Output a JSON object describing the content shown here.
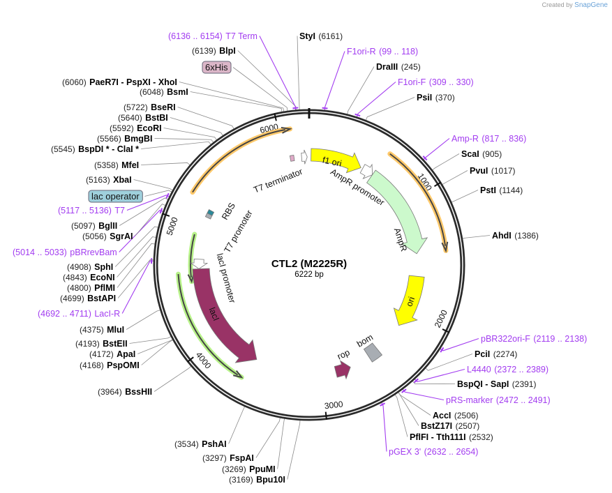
{
  "brand": {
    "created_by": "Created by",
    "app": "SnapGene"
  },
  "plasmid": {
    "name": "CTL2 (M2225R)",
    "length": "6222 bp",
    "total_bp": 6222
  },
  "scale_ticks": [
    "1000",
    "2000",
    "3000",
    "4000",
    "5000",
    "6000"
  ],
  "features": {
    "f1_ori": "f1 ori",
    "ampr_promoter": "AmpR promoter",
    "ampr": "AmpR",
    "ori": "ori",
    "bom": "bom",
    "rop": "rop",
    "laci": "lacI",
    "laci_promoter": "lacI promoter",
    "t7_promoter": "T7 promoter",
    "rbs": "RBS",
    "t7_terminator": "T7 terminator"
  },
  "colors": {
    "primer": "#a23cf0",
    "yellow": "#ffff00",
    "ampr": "#ccf9cc",
    "maroon": "#993366",
    "orf_orange": "#ffc96b",
    "orf_green": "#b8f28a"
  },
  "sites": [
    {
      "type": "enzyme",
      "names": [
        "StyI"
      ],
      "pos": "(6161)"
    },
    {
      "type": "primer",
      "names": [
        "F1ori-R"
      ],
      "pos": "(99 .. 118)"
    },
    {
      "type": "enzyme",
      "names": [
        "DraIII"
      ],
      "pos": "(245)"
    },
    {
      "type": "primer",
      "names": [
        "F1ori-F"
      ],
      "pos": "(309 .. 330)"
    },
    {
      "type": "enzyme",
      "names": [
        "PsiI"
      ],
      "pos": "(370)"
    },
    {
      "type": "primer",
      "names": [
        "Amp-R"
      ],
      "pos": "(817 .. 836)"
    },
    {
      "type": "enzyme",
      "names": [
        "ScaI"
      ],
      "pos": "(905)"
    },
    {
      "type": "enzyme",
      "names": [
        "PvuI"
      ],
      "pos": "(1017)"
    },
    {
      "type": "enzyme",
      "names": [
        "PstI"
      ],
      "pos": "(1144)"
    },
    {
      "type": "enzyme",
      "names": [
        "AhdI"
      ],
      "pos": "(1386)"
    },
    {
      "type": "primer",
      "names": [
        "pBR322ori-F"
      ],
      "pos": "(2119 .. 2138)"
    },
    {
      "type": "enzyme",
      "names": [
        "PciI"
      ],
      "pos": "(2274)"
    },
    {
      "type": "primer",
      "names": [
        "L4440"
      ],
      "pos": "(2372 .. 2389)"
    },
    {
      "type": "enzyme",
      "names": [
        "BspQI",
        "SapI"
      ],
      "pos": "(2391)"
    },
    {
      "type": "primer",
      "names": [
        "pRS-marker"
      ],
      "pos": "(2472 .. 2491)"
    },
    {
      "type": "enzyme",
      "names": [
        "AccI"
      ],
      "pos": "(2506)"
    },
    {
      "type": "enzyme",
      "names": [
        "BstZ17I"
      ],
      "pos": "(2507)"
    },
    {
      "type": "enzyme",
      "names": [
        "PflFI",
        "Tth111I"
      ],
      "pos": "(2532)"
    },
    {
      "type": "primer",
      "names": [
        "pGEX 3'"
      ],
      "pos": "(2632 .. 2654)"
    },
    {
      "type": "enzyme",
      "names": [
        "Bpu10I"
      ],
      "pos": "(3169)"
    },
    {
      "type": "enzyme",
      "names": [
        "PpuMI"
      ],
      "pos": "(3269)"
    },
    {
      "type": "enzyme",
      "names": [
        "FspAI"
      ],
      "pos": "(3297)"
    },
    {
      "type": "enzyme",
      "names": [
        "PshAI"
      ],
      "pos": "(3534)"
    },
    {
      "type": "enzyme",
      "names": [
        "BssHII"
      ],
      "pos": "(3964)"
    },
    {
      "type": "enzyme",
      "names": [
        "PspOMI"
      ],
      "pos": "(4168)"
    },
    {
      "type": "enzyme",
      "names": [
        "ApaI"
      ],
      "pos": "(4172)"
    },
    {
      "type": "enzyme",
      "names": [
        "BstEII"
      ],
      "pos": "(4193)"
    },
    {
      "type": "enzyme",
      "names": [
        "MluI"
      ],
      "pos": "(4375)"
    },
    {
      "type": "primer",
      "names": [
        "LacI-R"
      ],
      "pos": "(4692 .. 4711)"
    },
    {
      "type": "enzyme",
      "names": [
        "BstAPI"
      ],
      "pos": "(4699)"
    },
    {
      "type": "enzyme",
      "names": [
        "PflMI"
      ],
      "pos": "(4800)"
    },
    {
      "type": "enzyme",
      "names": [
        "EcoNI"
      ],
      "pos": "(4843)"
    },
    {
      "type": "enzyme",
      "names": [
        "SphI"
      ],
      "pos": "(4908)"
    },
    {
      "type": "primer",
      "names": [
        "pBRrevBam"
      ],
      "pos": "(5014 .. 5033)"
    },
    {
      "type": "enzyme",
      "names": [
        "SgrAI"
      ],
      "pos": "(5056)"
    },
    {
      "type": "enzyme",
      "names": [
        "BglII"
      ],
      "pos": "(5097)"
    },
    {
      "type": "primer",
      "names": [
        "T7"
      ],
      "pos": "(5117 .. 5136)"
    },
    {
      "type": "box",
      "names": [
        "lac operator"
      ],
      "pos": "",
      "fill": "#9fd0dc"
    },
    {
      "type": "enzyme",
      "names": [
        "XbaI"
      ],
      "pos": "(5163)"
    },
    {
      "type": "enzyme",
      "names": [
        "MfeI"
      ],
      "pos": "(5358)"
    },
    {
      "type": "enzyme",
      "names": [
        "BspDI *",
        "ClaI *"
      ],
      "pos": "(5545)"
    },
    {
      "type": "enzyme",
      "names": [
        "BmgBI"
      ],
      "pos": "(5566)"
    },
    {
      "type": "enzyme",
      "names": [
        "EcoRI"
      ],
      "pos": "(5592)"
    },
    {
      "type": "enzyme",
      "names": [
        "BstBI"
      ],
      "pos": "(5640)"
    },
    {
      "type": "enzyme",
      "names": [
        "BseRI"
      ],
      "pos": "(5722)"
    },
    {
      "type": "enzyme",
      "names": [
        "BsmI"
      ],
      "pos": "(6048)"
    },
    {
      "type": "enzyme",
      "names": [
        "PaeR7I",
        "PspXI",
        "XhoI"
      ],
      "pos": "(6060)"
    },
    {
      "type": "box",
      "names": [
        "6xHis"
      ],
      "pos": "",
      "fill": "#dbb6c8"
    },
    {
      "type": "enzyme",
      "names": [
        "BlpI"
      ],
      "pos": "(6139)"
    },
    {
      "type": "primer",
      "names": [
        "T7 Term"
      ],
      "pos": "(6136 .. 6154)"
    }
  ]
}
